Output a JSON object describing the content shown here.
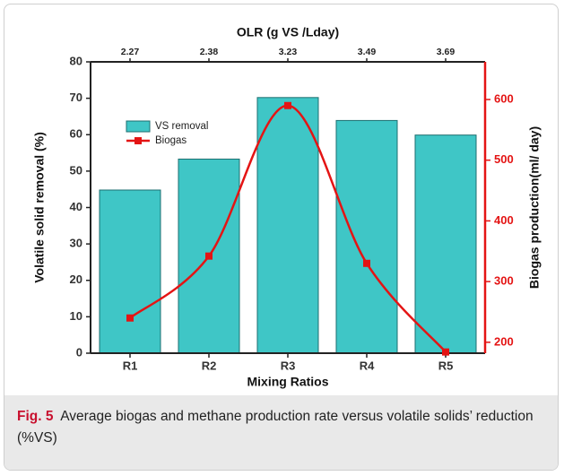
{
  "chart_data": {
    "type": "combo",
    "x_label": "Mixing Ratios",
    "y_label": "Volatile solid removal (%)",
    "y2_label": "Biogas production(ml/ day)",
    "top_axis": {
      "label": "OLR (g VS /Lday)",
      "values": [
        2.27,
        2.38,
        3.23,
        3.49,
        3.69
      ]
    },
    "categories": [
      "R1",
      "R2",
      "R3",
      "R4",
      "R5"
    ],
    "series": [
      {
        "name": "VS removal",
        "type": "bar",
        "color": "#3fc6c6",
        "values": [
          44.8,
          53.3,
          70.2,
          63.9,
          59.9
        ]
      },
      {
        "name": "Biogas",
        "type": "line",
        "axis": "y2",
        "color": "#e41414",
        "values": [
          240,
          342,
          590,
          330,
          184
        ]
      }
    ],
    "ylim": [
      0,
      80
    ],
    "yticks": [
      0,
      10,
      20,
      30,
      40,
      50,
      60,
      70,
      80
    ],
    "y2lim": [
      182,
      662
    ],
    "y2ticks": [
      200,
      300,
      400,
      500,
      600
    ],
    "legend": "upper-left"
  },
  "caption": {
    "label": "Fig. 5",
    "text": "Average biogas and methane production rate versus volatile solids’ reduction (%VS)"
  }
}
